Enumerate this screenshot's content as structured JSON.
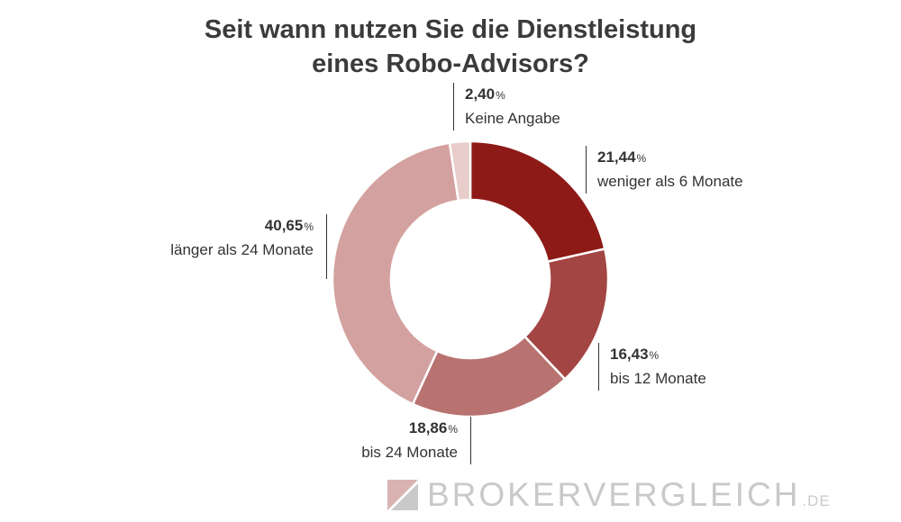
{
  "title_line1": "Seit wann nutzen Sie die Dienstleistung",
  "title_line2": "eines Robo-Advisors?",
  "percent_sign": "%",
  "chart_data": {
    "type": "pie",
    "variant": "donut",
    "title": "Seit wann nutzen Sie die Dienstleistung eines Robo-Advisors?",
    "slices": [
      {
        "label": "weniger als 6 Monate",
        "value_text": "21,44",
        "value": 21.44,
        "color": "#8e1a17"
      },
      {
        "label": "bis 12 Monate",
        "value_text": "16,43",
        "value": 16.43,
        "color": "#a34542"
      },
      {
        "label": "bis 24 Monate",
        "value_text": "18,86",
        "value": 18.86,
        "color": "#b87370"
      },
      {
        "label": "länger als 24 Monate",
        "value_text": "40,65",
        "value": 40.65,
        "color": "#d3a19f"
      },
      {
        "label": "Keine Angabe",
        "value_text": "2,40",
        "value": 2.4,
        "color": "#e8cdcb"
      }
    ]
  },
  "logo": {
    "text": "BROKERVERGLEICH",
    "tld": ".DE",
    "color": "#c9c9c9"
  }
}
